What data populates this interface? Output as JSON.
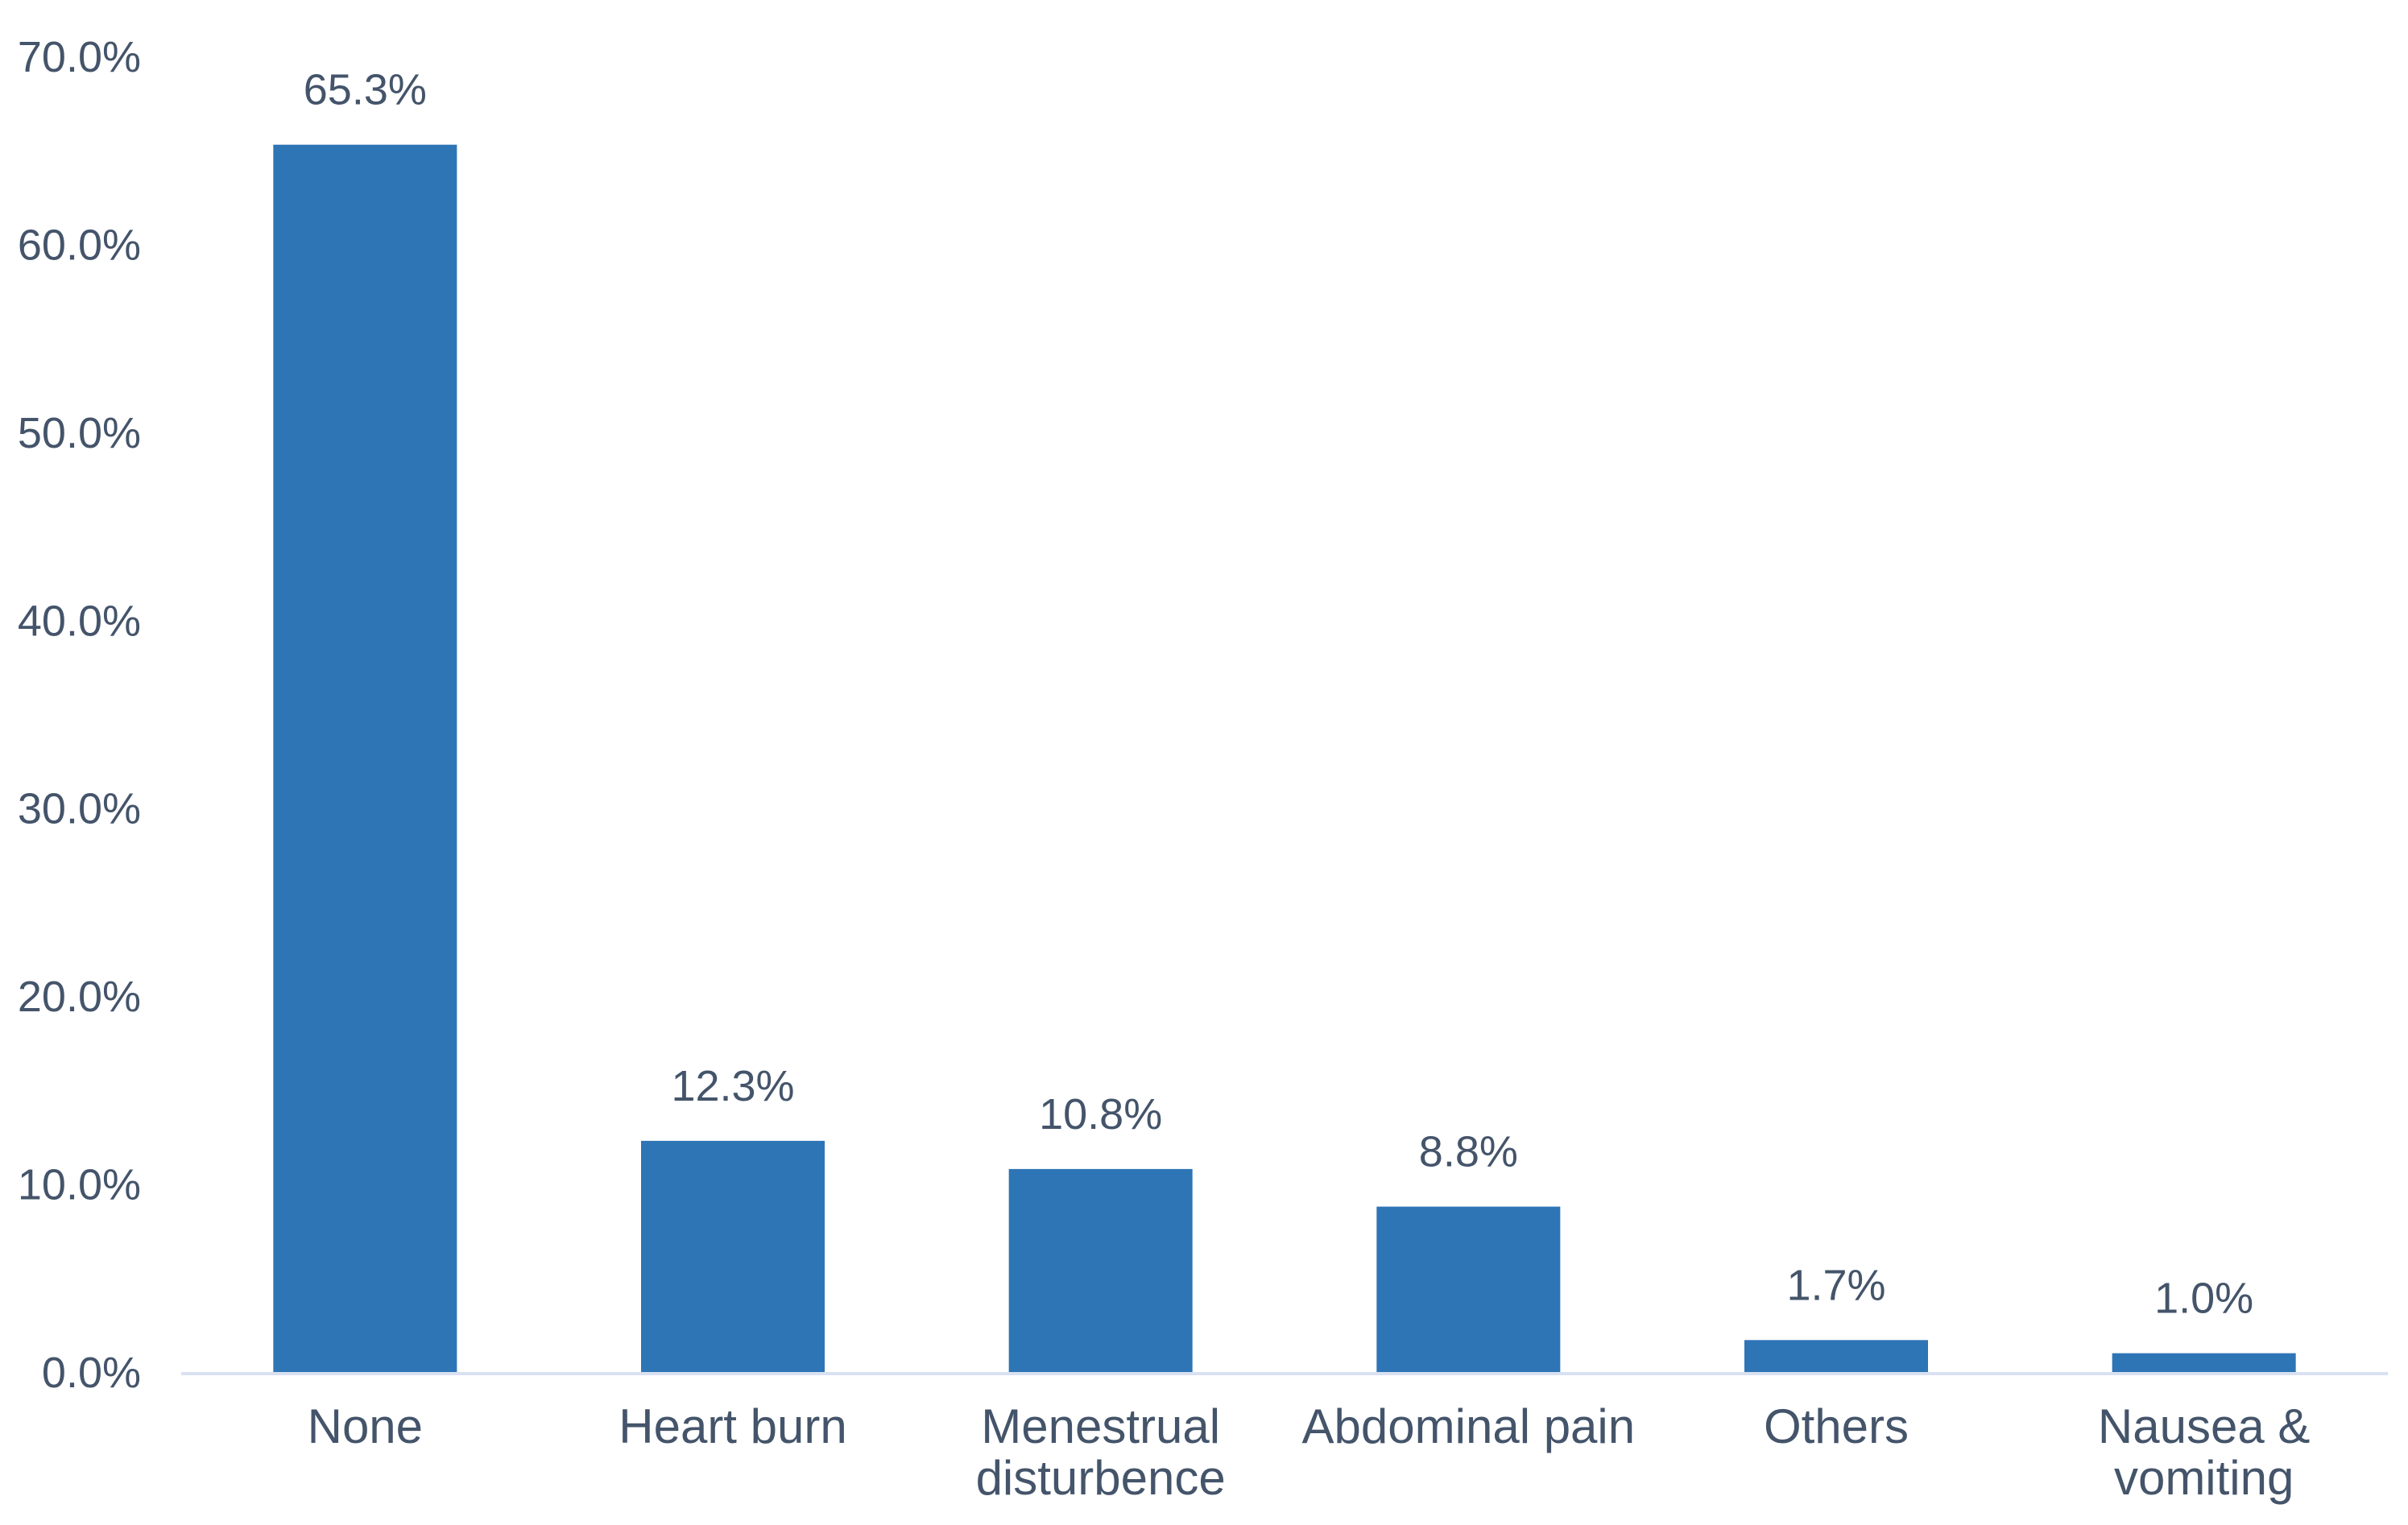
{
  "chart_data": {
    "type": "bar",
    "title": "",
    "xlabel": "",
    "ylabel": "",
    "categories": [
      [
        "None"
      ],
      [
        "Heart burn"
      ],
      [
        "Menestrual",
        "disturbence"
      ],
      [
        "Abdominal pain"
      ],
      [
        "Others"
      ],
      [
        "Nausea &",
        "vomiting"
      ]
    ],
    "values": [
      65.3,
      12.3,
      10.8,
      8.8,
      1.7,
      1.0
    ],
    "data_labels": [
      "65.3%",
      "12.3%",
      "10.8%",
      "8.8%",
      "1.7%",
      "1.0%"
    ],
    "ylim": [
      0,
      70
    ],
    "yticks": [
      0,
      10,
      20,
      30,
      40,
      50,
      60,
      70
    ],
    "ytick_labels": [
      "0.0%",
      "10.0%",
      "20.0%",
      "30.0%",
      "40.0%",
      "50.0%",
      "60.0%",
      "70.0%"
    ],
    "grid": false,
    "legend": "none",
    "colors": {
      "bar": "#2e75b6",
      "axis": "#d9e1f2",
      "text": "#44546a"
    }
  }
}
